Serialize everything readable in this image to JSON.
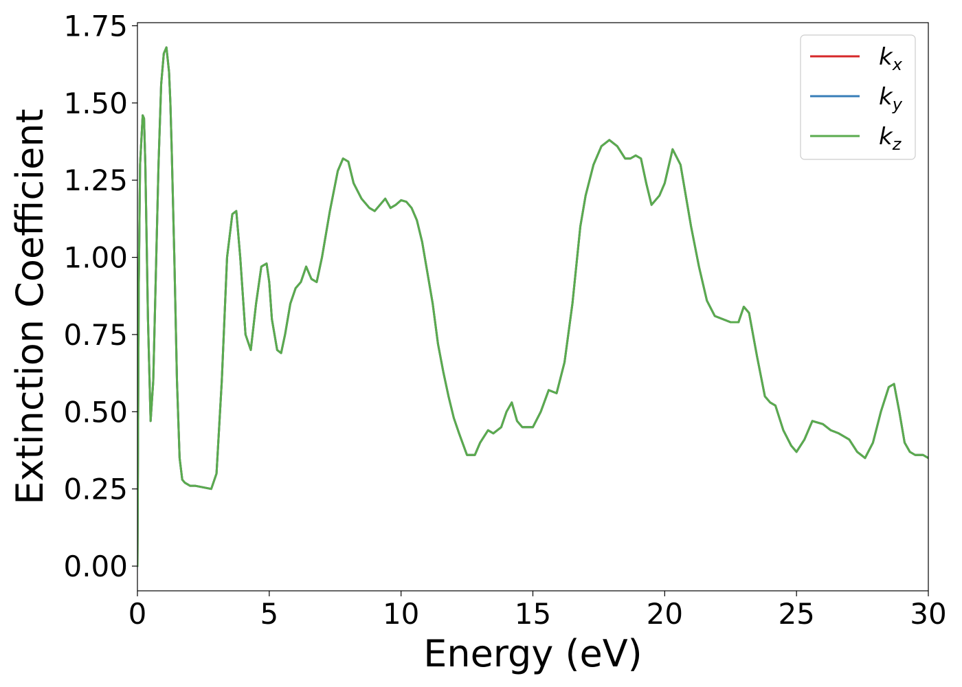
{
  "chart_data": {
    "type": "line",
    "xlabel": "Energy (eV)",
    "ylabel": "Extinction Coefficient",
    "xlim": [
      0,
      30
    ],
    "ylim": [
      -0.08,
      1.76
    ],
    "xticks": [
      0,
      5,
      10,
      15,
      20,
      25,
      30
    ],
    "yticks": [
      0.0,
      0.25,
      0.5,
      0.75,
      1.0,
      1.25,
      1.5,
      1.75
    ],
    "grid": false,
    "legend_position": "top-right",
    "series": [
      {
        "name": "k_x",
        "label_base": "k",
        "label_sub": "x",
        "color": "#d62728",
        "x": [
          0,
          0.05,
          0.1,
          0.2,
          0.25,
          0.3,
          0.4,
          0.5,
          0.6,
          0.7,
          0.8,
          0.9,
          1.0,
          1.1,
          1.2,
          1.25,
          1.3,
          1.4,
          1.5,
          1.6,
          1.7,
          1.8,
          2.0,
          2.2,
          2.5,
          2.8,
          3.0,
          3.2,
          3.4,
          3.6,
          3.75,
          3.9,
          4.1,
          4.3,
          4.5,
          4.7,
          4.9,
          5.0,
          5.1,
          5.3,
          5.45,
          5.6,
          5.8,
          6.0,
          6.2,
          6.4,
          6.6,
          6.8,
          7.0,
          7.3,
          7.6,
          7.8,
          8.0,
          8.2,
          8.5,
          8.8,
          9.0,
          9.2,
          9.4,
          9.6,
          9.8,
          10.0,
          10.2,
          10.4,
          10.6,
          10.8,
          11.0,
          11.2,
          11.4,
          11.6,
          11.8,
          12.0,
          12.2,
          12.5,
          12.8,
          13.0,
          13.3,
          13.5,
          13.8,
          14.0,
          14.2,
          14.4,
          14.6,
          14.8,
          15.0,
          15.3,
          15.6,
          15.9,
          16.2,
          16.5,
          16.8,
          17.0,
          17.3,
          17.6,
          17.9,
          18.2,
          18.5,
          18.7,
          18.9,
          19.1,
          19.3,
          19.5,
          19.8,
          20.0,
          20.3,
          20.6,
          20.8,
          21.0,
          21.3,
          21.6,
          21.9,
          22.2,
          22.5,
          22.8,
          23.0,
          23.2,
          23.5,
          23.8,
          24.0,
          24.2,
          24.5,
          24.8,
          25.0,
          25.3,
          25.6,
          26.0,
          26.3,
          26.6,
          27.0,
          27.3,
          27.6,
          27.9,
          28.2,
          28.5,
          28.7,
          28.9,
          29.1,
          29.3,
          29.5,
          29.8,
          30.0
        ],
        "y": [
          0.0,
          0.9,
          1.3,
          1.46,
          1.45,
          1.3,
          0.8,
          0.47,
          0.6,
          0.95,
          1.3,
          1.56,
          1.66,
          1.68,
          1.6,
          1.5,
          1.35,
          1.0,
          0.6,
          0.35,
          0.28,
          0.27,
          0.26,
          0.26,
          0.255,
          0.25,
          0.3,
          0.6,
          1.0,
          1.14,
          1.15,
          1.0,
          0.75,
          0.7,
          0.85,
          0.97,
          0.98,
          0.92,
          0.8,
          0.7,
          0.69,
          0.75,
          0.85,
          0.9,
          0.92,
          0.97,
          0.93,
          0.92,
          1.0,
          1.15,
          1.28,
          1.32,
          1.31,
          1.24,
          1.19,
          1.16,
          1.15,
          1.17,
          1.19,
          1.16,
          1.17,
          1.185,
          1.18,
          1.16,
          1.12,
          1.05,
          0.95,
          0.85,
          0.72,
          0.63,
          0.55,
          0.48,
          0.43,
          0.36,
          0.36,
          0.4,
          0.44,
          0.43,
          0.45,
          0.5,
          0.53,
          0.47,
          0.45,
          0.45,
          0.45,
          0.5,
          0.57,
          0.56,
          0.66,
          0.85,
          1.1,
          1.2,
          1.3,
          1.36,
          1.38,
          1.36,
          1.32,
          1.32,
          1.33,
          1.32,
          1.24,
          1.17,
          1.2,
          1.24,
          1.35,
          1.3,
          1.2,
          1.1,
          0.97,
          0.86,
          0.81,
          0.8,
          0.79,
          0.79,
          0.84,
          0.82,
          0.68,
          0.55,
          0.53,
          0.52,
          0.44,
          0.39,
          0.37,
          0.41,
          0.47,
          0.46,
          0.44,
          0.43,
          0.41,
          0.37,
          0.35,
          0.4,
          0.5,
          0.58,
          0.59,
          0.5,
          0.4,
          0.37,
          0.36,
          0.36,
          0.35
        ]
      },
      {
        "name": "k_y",
        "label_base": "k",
        "label_sub": "y",
        "color": "#377eb8",
        "x": [
          0,
          0.05,
          0.1,
          0.2,
          0.25,
          0.3,
          0.4,
          0.5,
          0.6,
          0.7,
          0.8,
          0.9,
          1.0,
          1.1,
          1.2,
          1.25,
          1.3,
          1.4,
          1.5,
          1.6,
          1.7,
          1.8,
          2.0,
          2.2,
          2.5,
          2.8,
          3.0,
          3.2,
          3.4,
          3.6,
          3.75,
          3.9,
          4.1,
          4.3,
          4.5,
          4.7,
          4.9,
          5.0,
          5.1,
          5.3,
          5.45,
          5.6,
          5.8,
          6.0,
          6.2,
          6.4,
          6.6,
          6.8,
          7.0,
          7.3,
          7.6,
          7.8,
          8.0,
          8.2,
          8.5,
          8.8,
          9.0,
          9.2,
          9.4,
          9.6,
          9.8,
          10.0,
          10.2,
          10.4,
          10.6,
          10.8,
          11.0,
          11.2,
          11.4,
          11.6,
          11.8,
          12.0,
          12.2,
          12.5,
          12.8,
          13.0,
          13.3,
          13.5,
          13.8,
          14.0,
          14.2,
          14.4,
          14.6,
          14.8,
          15.0,
          15.3,
          15.6,
          15.9,
          16.2,
          16.5,
          16.8,
          17.0,
          17.3,
          17.6,
          17.9,
          18.2,
          18.5,
          18.7,
          18.9,
          19.1,
          19.3,
          19.5,
          19.8,
          20.0,
          20.3,
          20.6,
          20.8,
          21.0,
          21.3,
          21.6,
          21.9,
          22.2,
          22.5,
          22.8,
          23.0,
          23.2,
          23.5,
          23.8,
          24.0,
          24.2,
          24.5,
          24.8,
          25.0,
          25.3,
          25.6,
          26.0,
          26.3,
          26.6,
          27.0,
          27.3,
          27.6,
          27.9,
          28.2,
          28.5,
          28.7,
          28.9,
          29.1,
          29.3,
          29.5,
          29.8,
          30.0
        ],
        "y": [
          0.0,
          0.9,
          1.3,
          1.46,
          1.45,
          1.3,
          0.8,
          0.47,
          0.6,
          0.95,
          1.3,
          1.56,
          1.66,
          1.68,
          1.6,
          1.5,
          1.35,
          1.0,
          0.6,
          0.35,
          0.28,
          0.27,
          0.26,
          0.26,
          0.255,
          0.25,
          0.3,
          0.6,
          1.0,
          1.14,
          1.15,
          1.0,
          0.75,
          0.7,
          0.85,
          0.97,
          0.98,
          0.92,
          0.8,
          0.7,
          0.69,
          0.75,
          0.85,
          0.9,
          0.92,
          0.97,
          0.93,
          0.92,
          1.0,
          1.15,
          1.28,
          1.32,
          1.31,
          1.24,
          1.19,
          1.16,
          1.15,
          1.17,
          1.19,
          1.16,
          1.17,
          1.185,
          1.18,
          1.16,
          1.12,
          1.05,
          0.95,
          0.85,
          0.72,
          0.63,
          0.55,
          0.48,
          0.43,
          0.36,
          0.36,
          0.4,
          0.44,
          0.43,
          0.45,
          0.5,
          0.53,
          0.47,
          0.45,
          0.45,
          0.45,
          0.5,
          0.57,
          0.56,
          0.66,
          0.85,
          1.1,
          1.2,
          1.3,
          1.36,
          1.38,
          1.36,
          1.32,
          1.32,
          1.33,
          1.32,
          1.24,
          1.17,
          1.2,
          1.24,
          1.35,
          1.3,
          1.2,
          1.1,
          0.97,
          0.86,
          0.81,
          0.8,
          0.79,
          0.79,
          0.84,
          0.82,
          0.68,
          0.55,
          0.53,
          0.52,
          0.44,
          0.39,
          0.37,
          0.41,
          0.47,
          0.46,
          0.44,
          0.43,
          0.41,
          0.37,
          0.35,
          0.4,
          0.5,
          0.58,
          0.59,
          0.5,
          0.4,
          0.37,
          0.36,
          0.36,
          0.35
        ]
      },
      {
        "name": "k_z",
        "label_base": "k",
        "label_sub": "z",
        "color": "#5aab4e",
        "x": [
          0,
          0.05,
          0.1,
          0.2,
          0.25,
          0.3,
          0.4,
          0.5,
          0.6,
          0.7,
          0.8,
          0.9,
          1.0,
          1.1,
          1.2,
          1.25,
          1.3,
          1.4,
          1.5,
          1.6,
          1.7,
          1.8,
          2.0,
          2.2,
          2.5,
          2.8,
          3.0,
          3.2,
          3.4,
          3.6,
          3.75,
          3.9,
          4.1,
          4.3,
          4.5,
          4.7,
          4.9,
          5.0,
          5.1,
          5.3,
          5.45,
          5.6,
          5.8,
          6.0,
          6.2,
          6.4,
          6.6,
          6.8,
          7.0,
          7.3,
          7.6,
          7.8,
          8.0,
          8.2,
          8.5,
          8.8,
          9.0,
          9.2,
          9.4,
          9.6,
          9.8,
          10.0,
          10.2,
          10.4,
          10.6,
          10.8,
          11.0,
          11.2,
          11.4,
          11.6,
          11.8,
          12.0,
          12.2,
          12.5,
          12.8,
          13.0,
          13.3,
          13.5,
          13.8,
          14.0,
          14.2,
          14.4,
          14.6,
          14.8,
          15.0,
          15.3,
          15.6,
          15.9,
          16.2,
          16.5,
          16.8,
          17.0,
          17.3,
          17.6,
          17.9,
          18.2,
          18.5,
          18.7,
          18.9,
          19.1,
          19.3,
          19.5,
          19.8,
          20.0,
          20.3,
          20.6,
          20.8,
          21.0,
          21.3,
          21.6,
          21.9,
          22.2,
          22.5,
          22.8,
          23.0,
          23.2,
          23.5,
          23.8,
          24.0,
          24.2,
          24.5,
          24.8,
          25.0,
          25.3,
          25.6,
          26.0,
          26.3,
          26.6,
          27.0,
          27.3,
          27.6,
          27.9,
          28.2,
          28.5,
          28.7,
          28.9,
          29.1,
          29.3,
          29.5,
          29.8,
          30.0
        ],
        "y": [
          0.0,
          0.9,
          1.3,
          1.46,
          1.45,
          1.3,
          0.8,
          0.47,
          0.6,
          0.95,
          1.3,
          1.56,
          1.66,
          1.68,
          1.6,
          1.5,
          1.35,
          1.0,
          0.6,
          0.35,
          0.28,
          0.27,
          0.26,
          0.26,
          0.255,
          0.25,
          0.3,
          0.6,
          1.0,
          1.14,
          1.15,
          1.0,
          0.75,
          0.7,
          0.85,
          0.97,
          0.98,
          0.92,
          0.8,
          0.7,
          0.69,
          0.75,
          0.85,
          0.9,
          0.92,
          0.97,
          0.93,
          0.92,
          1.0,
          1.15,
          1.28,
          1.32,
          1.31,
          1.24,
          1.19,
          1.16,
          1.15,
          1.17,
          1.19,
          1.16,
          1.17,
          1.185,
          1.18,
          1.16,
          1.12,
          1.05,
          0.95,
          0.85,
          0.72,
          0.63,
          0.55,
          0.48,
          0.43,
          0.36,
          0.36,
          0.4,
          0.44,
          0.43,
          0.45,
          0.5,
          0.53,
          0.47,
          0.45,
          0.45,
          0.45,
          0.5,
          0.57,
          0.56,
          0.66,
          0.85,
          1.1,
          1.2,
          1.3,
          1.36,
          1.38,
          1.36,
          1.32,
          1.32,
          1.33,
          1.32,
          1.24,
          1.17,
          1.2,
          1.24,
          1.35,
          1.3,
          1.2,
          1.1,
          0.97,
          0.86,
          0.81,
          0.8,
          0.79,
          0.79,
          0.84,
          0.82,
          0.68,
          0.55,
          0.53,
          0.52,
          0.44,
          0.39,
          0.37,
          0.41,
          0.47,
          0.46,
          0.44,
          0.43,
          0.41,
          0.37,
          0.35,
          0.4,
          0.5,
          0.58,
          0.59,
          0.5,
          0.4,
          0.37,
          0.36,
          0.36,
          0.35
        ]
      }
    ]
  }
}
